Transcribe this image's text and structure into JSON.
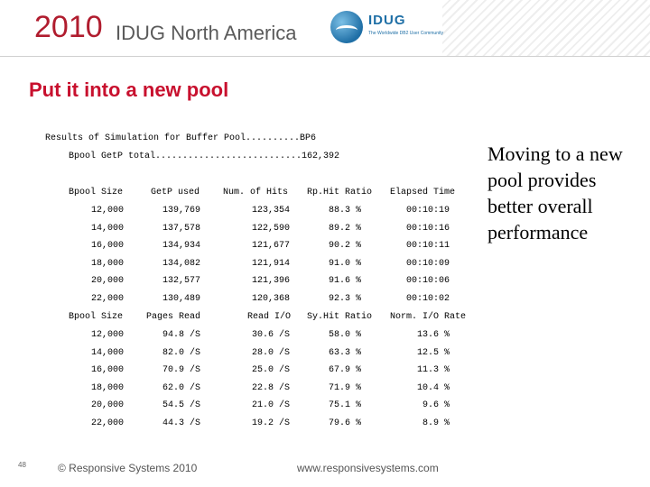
{
  "header": {
    "year": "2010",
    "conference": "IDUG North America",
    "logo_name": "IDUG",
    "logo_tagline": "The Worldwide DB2 User Community"
  },
  "slide": {
    "title": "Put it into a new pool",
    "simulation_title": "Results of Simulation for Buffer Pool..........BP6",
    "bpool_total": "Bpool GetP total...........................162,392",
    "side_note": "Moving to a new pool provides better overall performance"
  },
  "table1": {
    "headers": [
      "Bpool Size",
      "GetP used",
      "Num. of Hits",
      "Rp.Hit Ratio",
      "Elapsed Time"
    ],
    "rows": [
      [
        "12,000",
        "139,769",
        "123,354",
        "88.3 %",
        "00:10:19"
      ],
      [
        "14,000",
        "137,578",
        "122,590",
        "89.2 %",
        "00:10:16"
      ],
      [
        "16,000",
        "134,934",
        "121,677",
        "90.2 %",
        "00:10:11"
      ],
      [
        "18,000",
        "134,082",
        "121,914",
        "91.0 %",
        "00:10:09"
      ],
      [
        "20,000",
        "132,577",
        "121,396",
        "91.6 %",
        "00:10:06"
      ],
      [
        "22,000",
        "130,489",
        "120,368",
        "92.3 %",
        "00:10:02"
      ]
    ]
  },
  "table2": {
    "headers": [
      "Bpool Size",
      "Pages Read",
      "Read I/O",
      "Sy.Hit Ratio",
      "Norm. I/O Rate"
    ],
    "rows": [
      [
        "12,000",
        "94.8 /S",
        "30.6 /S",
        "58.0 %",
        "13.6 %"
      ],
      [
        "14,000",
        "82.0 /S",
        "28.0 /S",
        "63.3 %",
        "12.5 %"
      ],
      [
        "16,000",
        "70.9 /S",
        "25.0 /S",
        "67.9 %",
        "11.3 %"
      ],
      [
        "18,000",
        "62.0 /S",
        "22.8 /S",
        "71.9 %",
        "10.4 %"
      ],
      [
        "20,000",
        "54.5 /S",
        "21.0 /S",
        "75.1 %",
        "9.6 %"
      ],
      [
        "22,000",
        "44.3 /S",
        "19.2 /S",
        "79.6 %",
        "8.9 %"
      ]
    ]
  },
  "footer": {
    "page_number": "48",
    "copyright": "© Responsive Systems 2010",
    "url": "www.responsivesystems.com"
  }
}
